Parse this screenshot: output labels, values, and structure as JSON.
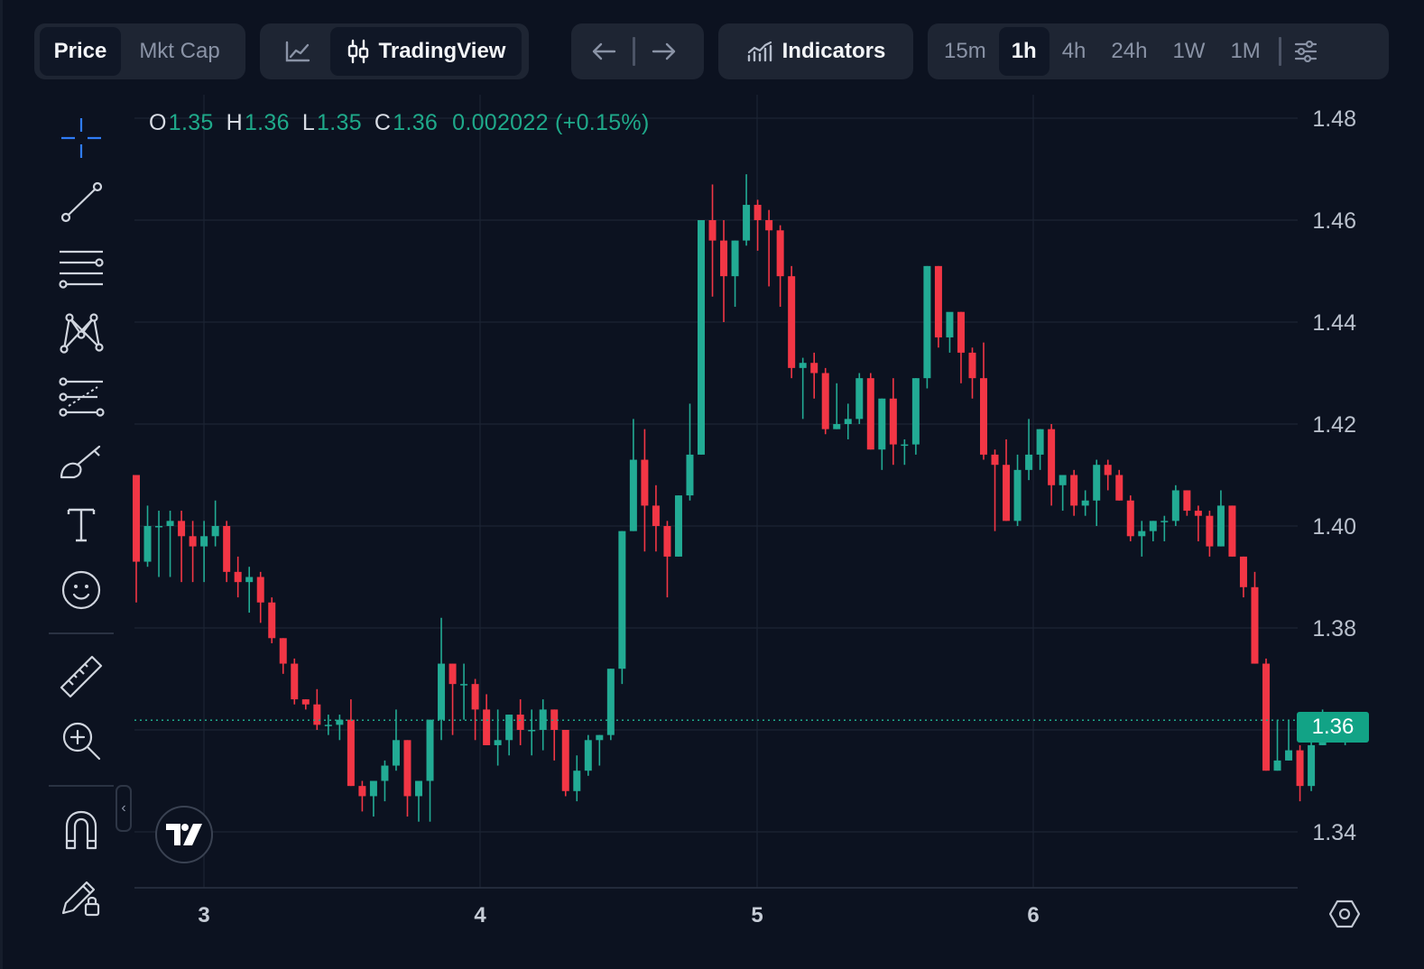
{
  "toolbar": {
    "mode_price": "Price",
    "mode_mktcap": "Mkt Cap",
    "chart_type_tradingview": "TradingView",
    "indicators": "Indicators",
    "timeframes": [
      "15m",
      "1h",
      "4h",
      "24h",
      "1W",
      "1M"
    ],
    "active_timeframe": "1h"
  },
  "ohlc": {
    "o_label": "O",
    "o": "1.35",
    "h_label": "H",
    "h": "1.36",
    "l_label": "L",
    "l": "1.35",
    "c_label": "C",
    "c": "1.36",
    "change": "0.002022 (+0.15%)"
  },
  "current_price_label": "1.36",
  "colors": {
    "up": "#22ab94",
    "down": "#f23645",
    "background": "#0c1220",
    "accent": "#12a386"
  },
  "chart_data": {
    "type": "candlestick",
    "x_ticks": [
      "3",
      "4",
      "5",
      "6"
    ],
    "y_ticks": [
      "1.48",
      "1.46",
      "1.44",
      "1.42",
      "1.40",
      "1.38",
      "1.36",
      "1.34"
    ],
    "ylim": [
      1.33,
      1.48
    ],
    "current_price": 1.3619,
    "candles": [
      [
        1.41,
        1.41,
        1.385,
        1.393
      ],
      [
        1.393,
        1.404,
        1.392,
        1.4
      ],
      [
        1.4,
        1.403,
        1.39,
        1.4
      ],
      [
        1.4,
        1.403,
        1.39,
        1.401
      ],
      [
        1.401,
        1.403,
        1.389,
        1.398
      ],
      [
        1.398,
        1.401,
        1.389,
        1.396
      ],
      [
        1.396,
        1.401,
        1.389,
        1.398
      ],
      [
        1.398,
        1.405,
        1.396,
        1.4
      ],
      [
        1.4,
        1.401,
        1.389,
        1.391
      ],
      [
        1.391,
        1.394,
        1.386,
        1.389
      ],
      [
        1.389,
        1.392,
        1.383,
        1.39
      ],
      [
        1.39,
        1.391,
        1.381,
        1.385
      ],
      [
        1.385,
        1.386,
        1.377,
        1.378
      ],
      [
        1.378,
        1.378,
        1.371,
        1.373
      ],
      [
        1.373,
        1.374,
        1.365,
        1.366
      ],
      [
        1.366,
        1.366,
        1.364,
        1.365
      ],
      [
        1.365,
        1.368,
        1.36,
        1.361
      ],
      [
        1.361,
        1.363,
        1.359,
        1.361
      ],
      [
        1.361,
        1.363,
        1.358,
        1.362
      ],
      [
        1.362,
        1.366,
        1.349,
        1.349
      ],
      [
        1.349,
        1.35,
        1.344,
        1.347
      ],
      [
        1.347,
        1.35,
        1.343,
        1.35
      ],
      [
        1.35,
        1.354,
        1.346,
        1.353
      ],
      [
        1.353,
        1.364,
        1.352,
        1.358
      ],
      [
        1.358,
        1.358,
        1.343,
        1.347
      ],
      [
        1.347,
        1.35,
        1.342,
        1.35
      ],
      [
        1.35,
        1.362,
        1.342,
        1.362
      ],
      [
        1.362,
        1.382,
        1.358,
        1.373
      ],
      [
        1.373,
        1.373,
        1.359,
        1.369
      ],
      [
        1.369,
        1.373,
        1.362,
        1.369
      ],
      [
        1.369,
        1.37,
        1.358,
        1.364
      ],
      [
        1.364,
        1.367,
        1.357,
        1.357
      ],
      [
        1.357,
        1.364,
        1.353,
        1.358
      ],
      [
        1.358,
        1.363,
        1.355,
        1.363
      ],
      [
        1.363,
        1.366,
        1.357,
        1.36
      ],
      [
        1.36,
        1.364,
        1.355,
        1.36
      ],
      [
        1.36,
        1.366,
        1.356,
        1.364
      ],
      [
        1.364,
        1.364,
        1.354,
        1.36
      ],
      [
        1.36,
        1.36,
        1.347,
        1.348
      ],
      [
        1.348,
        1.355,
        1.346,
        1.352
      ],
      [
        1.352,
        1.359,
        1.351,
        1.358
      ],
      [
        1.358,
        1.359,
        1.353,
        1.359
      ],
      [
        1.359,
        1.372,
        1.358,
        1.372
      ],
      [
        1.372,
        1.399,
        1.369,
        1.399
      ],
      [
        1.399,
        1.421,
        1.399,
        1.413
      ],
      [
        1.413,
        1.419,
        1.395,
        1.404
      ],
      [
        1.404,
        1.408,
        1.395,
        1.4
      ],
      [
        1.4,
        1.401,
        1.386,
        1.394
      ],
      [
        1.394,
        1.406,
        1.394,
        1.406
      ],
      [
        1.406,
        1.424,
        1.405,
        1.414
      ],
      [
        1.414,
        1.46,
        1.414,
        1.46
      ],
      [
        1.46,
        1.467,
        1.445,
        1.456
      ],
      [
        1.456,
        1.46,
        1.44,
        1.449
      ],
      [
        1.449,
        1.456,
        1.443,
        1.456
      ],
      [
        1.456,
        1.469,
        1.455,
        1.463
      ],
      [
        1.463,
        1.464,
        1.454,
        1.46
      ],
      [
        1.46,
        1.462,
        1.447,
        1.458
      ],
      [
        1.458,
        1.459,
        1.443,
        1.449
      ],
      [
        1.449,
        1.451,
        1.429,
        1.431
      ],
      [
        1.431,
        1.433,
        1.421,
        1.432
      ],
      [
        1.432,
        1.434,
        1.425,
        1.43
      ],
      [
        1.43,
        1.431,
        1.418,
        1.419
      ],
      [
        1.419,
        1.428,
        1.419,
        1.42
      ],
      [
        1.42,
        1.424,
        1.417,
        1.421
      ],
      [
        1.421,
        1.43,
        1.42,
        1.429
      ],
      [
        1.429,
        1.43,
        1.415,
        1.415
      ],
      [
        1.415,
        1.425,
        1.411,
        1.425
      ],
      [
        1.425,
        1.429,
        1.412,
        1.416
      ],
      [
        1.416,
        1.417,
        1.412,
        1.416
      ],
      [
        1.416,
        1.429,
        1.414,
        1.429
      ],
      [
        1.429,
        1.451,
        1.427,
        1.451
      ],
      [
        1.451,
        1.451,
        1.435,
        1.437
      ],
      [
        1.437,
        1.441,
        1.434,
        1.442
      ],
      [
        1.442,
        1.442,
        1.428,
        1.434
      ],
      [
        1.434,
        1.435,
        1.425,
        1.429
      ],
      [
        1.429,
        1.436,
        1.413,
        1.414
      ],
      [
        1.414,
        1.415,
        1.399,
        1.412
      ],
      [
        1.412,
        1.417,
        1.401,
        1.401
      ],
      [
        1.401,
        1.414,
        1.4,
        1.411
      ],
      [
        1.411,
        1.421,
        1.409,
        1.414
      ],
      [
        1.414,
        1.419,
        1.411,
        1.419
      ],
      [
        1.419,
        1.42,
        1.404,
        1.408
      ],
      [
        1.408,
        1.41,
        1.403,
        1.41
      ],
      [
        1.41,
        1.411,
        1.402,
        1.404
      ],
      [
        1.404,
        1.407,
        1.402,
        1.405
      ],
      [
        1.405,
        1.413,
        1.4,
        1.412
      ],
      [
        1.412,
        1.413,
        1.407,
        1.41
      ],
      [
        1.41,
        1.411,
        1.405,
        1.405
      ],
      [
        1.405,
        1.406,
        1.397,
        1.398
      ],
      [
        1.398,
        1.401,
        1.394,
        1.399
      ],
      [
        1.399,
        1.401,
        1.397,
        1.401
      ],
      [
        1.401,
        1.402,
        1.397,
        1.401
      ],
      [
        1.401,
        1.408,
        1.4,
        1.407
      ],
      [
        1.407,
        1.407,
        1.402,
        1.403
      ],
      [
        1.403,
        1.404,
        1.397,
        1.402
      ],
      [
        1.402,
        1.403,
        1.394,
        1.396
      ],
      [
        1.396,
        1.407,
        1.396,
        1.404
      ],
      [
        1.404,
        1.404,
        1.394,
        1.394
      ],
      [
        1.394,
        1.394,
        1.386,
        1.388
      ],
      [
        1.388,
        1.391,
        1.373,
        1.373
      ],
      [
        1.373,
        1.374,
        1.352,
        1.352
      ],
      [
        1.352,
        1.362,
        1.352,
        1.354
      ],
      [
        1.354,
        1.362,
        1.354,
        1.356
      ],
      [
        1.356,
        1.357,
        1.346,
        1.349
      ],
      [
        1.349,
        1.358,
        1.348,
        1.357
      ],
      [
        1.357,
        1.364,
        1.357,
        1.362
      ],
      [
        1.362,
        1.362,
        1.358,
        1.359
      ],
      [
        1.359,
        1.362,
        1.357,
        1.362
      ]
    ]
  }
}
